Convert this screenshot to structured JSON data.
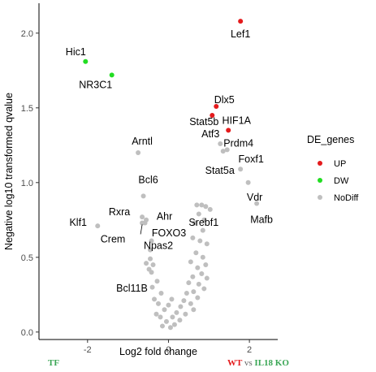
{
  "chart_data": {
    "type": "scatter",
    "xlabel": "Log2 fold change",
    "ylabel": "Negative log10 transformed qvalue",
    "xlim": [
      -3.2,
      2.7
    ],
    "ylim": [
      -0.05,
      2.2
    ],
    "xticks": [
      -2,
      0,
      2
    ],
    "yticks": [
      0.0,
      0.5,
      1.0,
      1.5,
      2.0
    ],
    "ytick_labels": [
      "0.0",
      "0.5",
      "1.0",
      "1.5",
      "2.0"
    ],
    "grid": false,
    "legend": {
      "title": "DE_genes",
      "position": "right",
      "entries": [
        {
          "name": "UP",
          "color": "#e41a1c"
        },
        {
          "name": "DW",
          "color": "#22dd22"
        },
        {
          "name": "NoDiff",
          "color": "#bfbfbf"
        }
      ]
    },
    "series": [
      {
        "name": "UP",
        "color": "#e41a1c",
        "points": [
          {
            "x": 1.78,
            "y": 2.08,
            "label": "Lef1"
          },
          {
            "x": 1.18,
            "y": 1.51,
            "label": "Dlx5"
          },
          {
            "x": 1.08,
            "y": 1.45,
            "label": "Stat5b"
          },
          {
            "x": 1.48,
            "y": 1.35,
            "label": "HIF1A"
          }
        ]
      },
      {
        "name": "DW",
        "color": "#22dd22",
        "points": [
          {
            "x": -2.05,
            "y": 1.81,
            "label": "Hic1"
          },
          {
            "x": -1.4,
            "y": 1.72,
            "label": "NR3C1"
          }
        ]
      },
      {
        "name": "NoDiff",
        "color": "#bfbfbf",
        "points": [
          {
            "x": -0.75,
            "y": 1.2,
            "label": "Arntl"
          },
          {
            "x": 1.28,
            "y": 1.26,
            "label": "Atf3"
          },
          {
            "x": 1.45,
            "y": 1.22,
            "label": "Prdm4"
          },
          {
            "x": 1.35,
            "y": 1.21,
            "label": "Stat5a"
          },
          {
            "x": 1.78,
            "y": 1.09,
            "label": "Foxf1"
          },
          {
            "x": 1.97,
            "y": 1.0,
            "label": "Vdr"
          },
          {
            "x": 2.18,
            "y": 0.86,
            "label": "Mafb"
          },
          {
            "x": -0.62,
            "y": 0.91,
            "label": "Bcl6"
          },
          {
            "x": -0.65,
            "y": 0.77,
            "label": "Rxra"
          },
          {
            "x": -0.58,
            "y": 0.73,
            "label": "Ahr"
          },
          {
            "x": -1.75,
            "y": 0.71,
            "label": "Klf1"
          },
          {
            "x": -0.65,
            "y": 0.73,
            "label": "Crem"
          },
          {
            "x": -0.55,
            "y": 0.75,
            "label": "FOXO3"
          },
          {
            "x": 1.03,
            "y": 0.82,
            "label": "Srebf1"
          },
          {
            "x": -0.45,
            "y": 0.49,
            "label": "Npas2"
          },
          {
            "x": -0.42,
            "y": 0.4,
            "label": "Bcl11B"
          },
          {
            "x": 0.7,
            "y": 0.85
          },
          {
            "x": 0.82,
            "y": 0.85
          },
          {
            "x": 0.92,
            "y": 0.84
          },
          {
            "x": 0.75,
            "y": 0.79
          },
          {
            "x": 0.88,
            "y": 0.75
          },
          {
            "x": 0.65,
            "y": 0.73
          },
          {
            "x": 0.85,
            "y": 0.68
          },
          {
            "x": 0.6,
            "y": 0.63
          },
          {
            "x": 0.78,
            "y": 0.61
          },
          {
            "x": 0.95,
            "y": 0.59
          },
          {
            "x": 0.68,
            "y": 0.53
          },
          {
            "x": 0.85,
            "y": 0.5
          },
          {
            "x": 0.55,
            "y": 0.47
          },
          {
            "x": 0.92,
            "y": 0.45
          },
          {
            "x": 0.72,
            "y": 0.43
          },
          {
            "x": 0.82,
            "y": 0.39
          },
          {
            "x": 0.6,
            "y": 0.37
          },
          {
            "x": 0.95,
            "y": 0.36
          },
          {
            "x": 0.5,
            "y": 0.33
          },
          {
            "x": 0.75,
            "y": 0.32
          },
          {
            "x": 0.88,
            "y": 0.29
          },
          {
            "x": 0.62,
            "y": 0.27
          },
          {
            "x": 0.45,
            "y": 0.26
          },
          {
            "x": 0.72,
            "y": 0.23
          },
          {
            "x": 0.38,
            "y": 0.21
          },
          {
            "x": 0.55,
            "y": 0.19
          },
          {
            "x": 0.3,
            "y": 0.17
          },
          {
            "x": 0.62,
            "y": 0.15
          },
          {
            "x": 0.2,
            "y": 0.13
          },
          {
            "x": 0.42,
            "y": 0.12
          },
          {
            "x": 0.1,
            "y": 0.1
          },
          {
            "x": 0.28,
            "y": 0.08
          },
          {
            "x": -0.05,
            "y": 0.07
          },
          {
            "x": 0.15,
            "y": 0.05
          },
          {
            "x": -0.15,
            "y": 0.04
          },
          {
            "x": 0.05,
            "y": 0.03
          },
          {
            "x": -0.2,
            "y": 0.1
          },
          {
            "x": -0.3,
            "y": 0.12
          },
          {
            "x": -0.1,
            "y": 0.15
          },
          {
            "x": -0.25,
            "y": 0.19
          },
          {
            "x": -0.35,
            "y": 0.22
          },
          {
            "x": -0.18,
            "y": 0.26
          },
          {
            "x": -0.4,
            "y": 0.3
          },
          {
            "x": -0.28,
            "y": 0.34
          },
          {
            "x": -0.48,
            "y": 0.42
          },
          {
            "x": -0.38,
            "y": 0.45
          },
          {
            "x": -0.55,
            "y": 0.46
          },
          {
            "x": -0.45,
            "y": 0.55
          },
          {
            "x": -0.42,
            "y": 0.61
          },
          {
            "x": 0.0,
            "y": 0.18
          },
          {
            "x": 0.08,
            "y": 0.22
          }
        ]
      }
    ]
  },
  "footer": {
    "tf_label": "TF",
    "wt_label": "WT",
    "vs_label": "vs",
    "ko_label": "IL18 KO"
  }
}
